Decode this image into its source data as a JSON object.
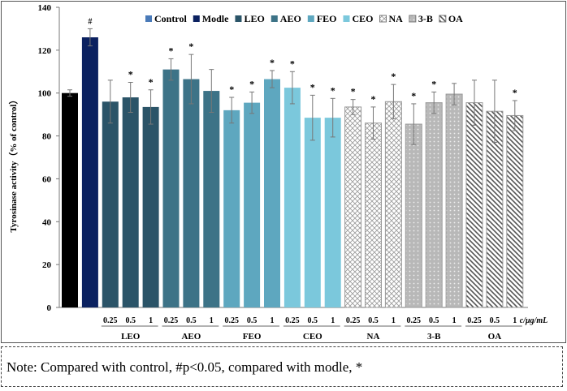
{
  "chart_data": {
    "type": "bar",
    "ylabel": "Tyrosinase activity（% of control）",
    "ylim": [
      0,
      140
    ],
    "yticks": [
      0,
      20,
      40,
      60,
      80,
      100,
      120,
      140
    ],
    "unit_label": "c/μg/mL",
    "legend": [
      "Control",
      "Modle",
      "LEO",
      "AEO",
      "FEO",
      "CEO",
      "NA",
      "3-B",
      "OA"
    ],
    "legend_position": "top-right",
    "colors": {
      "Control": "#000000",
      "Modle": "#0b2160",
      "LEO": "#2b5468",
      "AEO": "#3d7387",
      "FEO": "#5ea7bf",
      "CEO": "#7bc8dc",
      "NA": "pattern-crosshatch",
      "3-B": "pattern-dots",
      "OA": "pattern-backslash",
      "ControlLegend": "#4a7ab8"
    },
    "bars": [
      {
        "group": "Control",
        "dose": "",
        "value": 100,
        "error": 1.5,
        "mark": ""
      },
      {
        "group": "Modle",
        "dose": "",
        "value": 126,
        "error": 4,
        "mark": "#"
      },
      {
        "group": "LEO",
        "dose": "0.25",
        "value": 96,
        "error": 10,
        "mark": ""
      },
      {
        "group": "LEO",
        "dose": "0.5",
        "value": 98,
        "error": 7,
        "mark": "*"
      },
      {
        "group": "LEO",
        "dose": "1",
        "value": 93.5,
        "error": 8,
        "mark": "*"
      },
      {
        "group": "AEO",
        "dose": "0.25",
        "value": 111,
        "error": 5,
        "mark": "*"
      },
      {
        "group": "AEO",
        "dose": "0.5",
        "value": 106.5,
        "error": 11.5,
        "mark": "*"
      },
      {
        "group": "AEO",
        "dose": "1",
        "value": 101,
        "error": 10,
        "mark": ""
      },
      {
        "group": "FEO",
        "dose": "0.25",
        "value": 92,
        "error": 6,
        "mark": "*"
      },
      {
        "group": "FEO",
        "dose": "0.5",
        "value": 95.5,
        "error": 5,
        "mark": "*"
      },
      {
        "group": "FEO",
        "dose": "1",
        "value": 106.5,
        "error": 4,
        "mark": "*"
      },
      {
        "group": "CEO",
        "dose": "0.25",
        "value": 102.5,
        "error": 7.5,
        "mark": "*"
      },
      {
        "group": "CEO",
        "dose": "0.5",
        "value": 88.5,
        "error": 10.5,
        "mark": "*"
      },
      {
        "group": "CEO",
        "dose": "1",
        "value": 88.5,
        "error": 9,
        "mark": "*"
      },
      {
        "group": "NA",
        "dose": "0.25",
        "value": 93.5,
        "error": 3.5,
        "mark": "*"
      },
      {
        "group": "NA",
        "dose": "0.5",
        "value": 86,
        "error": 7.5,
        "mark": "*"
      },
      {
        "group": "NA",
        "dose": "1",
        "value": 96,
        "error": 8,
        "mark": "*"
      },
      {
        "group": "3-B",
        "dose": "0.25",
        "value": 85.5,
        "error": 9.5,
        "mark": "*"
      },
      {
        "group": "3-B",
        "dose": "0.5",
        "value": 95.5,
        "error": 5,
        "mark": "*"
      },
      {
        "group": "3-B",
        "dose": "1",
        "value": 99.5,
        "error": 5,
        "mark": ""
      },
      {
        "group": "OA",
        "dose": "0.25",
        "value": 95.5,
        "error": 10.5,
        "mark": ""
      },
      {
        "group": "OA",
        "dose": "0.5",
        "value": 91.5,
        "error": 14.5,
        "mark": ""
      },
      {
        "group": "OA",
        "dose": "1",
        "value": 89.5,
        "error": 7,
        "mark": "*"
      }
    ],
    "groups": [
      "LEO",
      "AEO",
      "FEO",
      "CEO",
      "NA",
      "3-B",
      "OA"
    ]
  },
  "note": "Note: Compared with control, #p<0.05, compared with modle, *"
}
